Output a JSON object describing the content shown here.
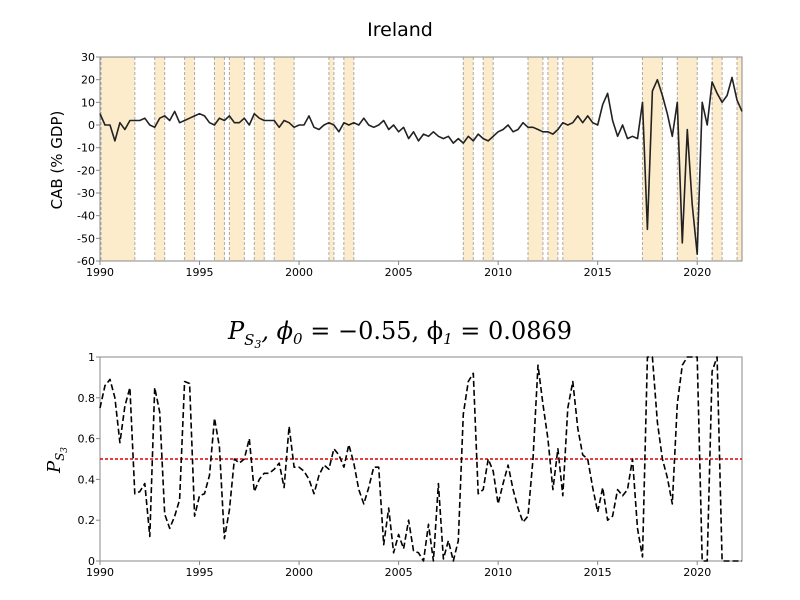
{
  "chart_data": [
    {
      "type": "line",
      "title": "Ireland",
      "ylabel": "CAB (% GDP)",
      "xlabel": "",
      "xlim": [
        1990,
        2022.25
      ],
      "ylim": [
        -60,
        30
      ],
      "x_ticks": [
        "1990",
        "1995",
        "2000",
        "2005",
        "2010",
        "2015",
        "2020"
      ],
      "y_ticks": [
        "30",
        "20",
        "10",
        "0",
        "-10",
        "-20",
        "-30",
        "-40",
        "-50",
        "-60"
      ],
      "shaded_color": "#fdeccc",
      "line_color": "#222222",
      "shaded_regions": [
        [
          1990.05,
          1991.75
        ],
        [
          1992.75,
          1993.25
        ],
        [
          1994.25,
          1994.75
        ],
        [
          1995.75,
          1996.25
        ],
        [
          1996.5,
          1997.25
        ],
        [
          1997.75,
          1998.25
        ],
        [
          1998.75,
          1999.75
        ],
        [
          2001.5,
          2001.75
        ],
        [
          2002.25,
          2002.75
        ],
        [
          2008.25,
          2008.75
        ],
        [
          2009.25,
          2009.75
        ],
        [
          2011.5,
          2012.25
        ],
        [
          2012.5,
          2013.0
        ],
        [
          2013.25,
          2014.75
        ],
        [
          2017.25,
          2018.25
        ],
        [
          2019.0,
          2020.0
        ],
        [
          2020.75,
          2021.25
        ],
        [
          2022.0,
          2022.25
        ]
      ],
      "series": [
        {
          "x": [
            1990.0,
            1990.25,
            1990.5,
            1990.75,
            1991.0,
            1991.25,
            1991.5,
            1991.75,
            1992.0,
            1992.25,
            1992.5,
            1992.75,
            1993.0,
            1993.25,
            1993.5,
            1993.75,
            1994.0,
            1994.25,
            1994.5,
            1994.75,
            1995.0,
            1995.25,
            1995.5,
            1995.75,
            1996.0,
            1996.25,
            1996.5,
            1996.75,
            1997.0,
            1997.25,
            1997.5,
            1997.75,
            1998.0,
            1998.25,
            1998.5,
            1998.75,
            1999.0,
            1999.25,
            1999.5,
            1999.75,
            2000.0,
            2000.25,
            2000.5,
            2000.75,
            2001.0,
            2001.25,
            2001.5,
            2001.75,
            2002.0,
            2002.25,
            2002.5,
            2002.75,
            2003.0,
            2003.25,
            2003.5,
            2003.75,
            2004.0,
            2004.25,
            2004.5,
            2004.75,
            2005.0,
            2005.25,
            2005.5,
            2005.75,
            2006.0,
            2006.25,
            2006.5,
            2006.75,
            2007.0,
            2007.25,
            2007.5,
            2007.75,
            2008.0,
            2008.25,
            2008.5,
            2008.75,
            2009.0,
            2009.25,
            2009.5,
            2009.75,
            2010.0,
            2010.25,
            2010.5,
            2010.75,
            2011.0,
            2011.25,
            2011.5,
            2011.75,
            2012.0,
            2012.25,
            2012.5,
            2012.75,
            2013.0,
            2013.25,
            2013.5,
            2013.75,
            2014.0,
            2014.25,
            2014.5,
            2014.75,
            2015.0,
            2015.25,
            2015.5,
            2015.75,
            2016.0,
            2016.25,
            2016.5,
            2016.75,
            2017.0,
            2017.25,
            2017.5,
            2017.75,
            2018.0,
            2018.25,
            2018.5,
            2018.75,
            2019.0,
            2019.25,
            2019.5,
            2019.75,
            2020.0,
            2020.25,
            2020.5,
            2020.75,
            2021.0,
            2021.25,
            2021.5,
            2021.75,
            2022.0,
            2022.25
          ],
          "y": [
            5,
            0,
            0,
            -7,
            1,
            -2,
            2,
            2,
            2,
            3,
            0,
            -1,
            3,
            4,
            2,
            6,
            1,
            2,
            3,
            4,
            5,
            4,
            1,
            0,
            3,
            2,
            4,
            1,
            1,
            3,
            0,
            5,
            3,
            2,
            2,
            2,
            -1,
            2,
            1,
            -1,
            0,
            0,
            4,
            -1,
            -2,
            0,
            1,
            0,
            -3,
            1,
            0,
            1,
            0,
            3,
            0,
            -1,
            0,
            2,
            -2,
            0,
            -3,
            -1,
            -6,
            -3,
            -7,
            -4,
            -5,
            -3,
            -5,
            -6,
            -5,
            -8,
            -6,
            -8,
            -5,
            -7,
            -4,
            -6,
            -7,
            -5,
            -3,
            -2,
            0,
            -3,
            -2,
            1,
            -1,
            -1,
            -2,
            -3,
            -3,
            -4,
            -2,
            1,
            0,
            1,
            4,
            1,
            4,
            1,
            0,
            9,
            14,
            2,
            -5,
            0,
            -6,
            -5,
            -6,
            10,
            -46,
            15,
            20,
            13,
            5,
            -5,
            10,
            -52,
            -2,
            -35,
            -57,
            10,
            0,
            19,
            14,
            10,
            13,
            21,
            11,
            6
          ]
        }
      ]
    },
    {
      "type": "line",
      "title": "P_{S_3}, ϕ_0 = -0.55, ϕ_1 = 0.0869",
      "title_parts": {
        "p": "P",
        "sub_s": "S",
        "sub_sub": "3",
        "rest": ", ϕ",
        "phi0_sub": "0",
        "phi0_val": " = −0.55, ϕ",
        "phi1_sub": "1",
        "phi1_val": " = 0.0869"
      },
      "ylabel": "P_{S_3}",
      "ylabel_parts": {
        "p": "P",
        "s": "S",
        "n": "3"
      },
      "xlabel": "",
      "xlim": [
        1990,
        2022.25
      ],
      "ylim": [
        0,
        1
      ],
      "x_ticks": [
        "1990",
        "1995",
        "2000",
        "2005",
        "2010",
        "2015",
        "2020"
      ],
      "y_ticks": [
        "1",
        "0.8",
        "0.6",
        "0.4",
        "0.2",
        "0"
      ],
      "threshold": 0.5,
      "threshold_color": "#dd0000",
      "line_color": "#000000",
      "series": [
        {
          "x": [
            1990.0,
            1990.25,
            1990.5,
            1990.75,
            1991.0,
            1991.25,
            1991.5,
            1991.75,
            1992.0,
            1992.25,
            1992.5,
            1992.75,
            1993.0,
            1993.25,
            1993.5,
            1993.75,
            1994.0,
            1994.25,
            1994.5,
            1994.75,
            1995.0,
            1995.25,
            1995.5,
            1995.75,
            1996.0,
            1996.25,
            1996.5,
            1996.75,
            1997.0,
            1997.25,
            1997.5,
            1997.75,
            1998.0,
            1998.25,
            1998.5,
            1998.75,
            1999.0,
            1999.25,
            1999.5,
            1999.75,
            2000.0,
            2000.25,
            2000.5,
            2000.75,
            2001.0,
            2001.25,
            2001.5,
            2001.75,
            2002.0,
            2002.25,
            2002.5,
            2002.75,
            2003.0,
            2003.25,
            2003.5,
            2003.75,
            2004.0,
            2004.25,
            2004.5,
            2004.75,
            2005.0,
            2005.25,
            2005.5,
            2005.75,
            2006.0,
            2006.25,
            2006.5,
            2006.75,
            2007.0,
            2007.25,
            2007.5,
            2007.75,
            2008.0,
            2008.25,
            2008.5,
            2008.75,
            2009.0,
            2009.25,
            2009.5,
            2009.75,
            2010.0,
            2010.25,
            2010.5,
            2010.75,
            2011.0,
            2011.25,
            2011.5,
            2011.75,
            2012.0,
            2012.25,
            2012.5,
            2012.75,
            2013.0,
            2013.25,
            2013.5,
            2013.75,
            2014.0,
            2014.25,
            2014.5,
            2014.75,
            2015.0,
            2015.25,
            2015.5,
            2015.75,
            2016.0,
            2016.25,
            2016.5,
            2016.75,
            2017.0,
            2017.25,
            2017.5,
            2017.75,
            2018.0,
            2018.25,
            2018.5,
            2018.75,
            2019.0,
            2019.25,
            2019.5,
            2019.75,
            2020.0,
            2020.25,
            2020.5,
            2020.75,
            2021.0,
            2021.25,
            2021.5,
            2021.75,
            2022.0,
            2022.25
          ],
          "y": [
            0.75,
            0.86,
            0.89,
            0.8,
            0.58,
            0.76,
            0.85,
            0.33,
            0.34,
            0.38,
            0.12,
            0.85,
            0.73,
            0.23,
            0.16,
            0.22,
            0.3,
            0.88,
            0.87,
            0.22,
            0.32,
            0.33,
            0.42,
            0.7,
            0.56,
            0.11,
            0.25,
            0.5,
            0.48,
            0.5,
            0.6,
            0.34,
            0.4,
            0.43,
            0.43,
            0.45,
            0.48,
            0.36,
            0.66,
            0.46,
            0.46,
            0.44,
            0.4,
            0.33,
            0.42,
            0.47,
            0.45,
            0.55,
            0.52,
            0.46,
            0.57,
            0.48,
            0.35,
            0.28,
            0.36,
            0.46,
            0.46,
            0.08,
            0.26,
            0.04,
            0.13,
            0.06,
            0.2,
            0.05,
            0.04,
            0.0,
            0.18,
            0.0,
            0.38,
            0.01,
            0.1,
            0.0,
            0.1,
            0.72,
            0.88,
            0.92,
            0.33,
            0.35,
            0.5,
            0.44,
            0.28,
            0.38,
            0.47,
            0.35,
            0.26,
            0.19,
            0.22,
            0.5,
            0.96,
            0.77,
            0.6,
            0.35,
            0.55,
            0.32,
            0.75,
            0.88,
            0.65,
            0.52,
            0.5,
            0.36,
            0.24,
            0.36,
            0.2,
            0.22,
            0.35,
            0.32,
            0.35,
            0.5,
            0.16,
            0.02,
            1.0,
            1.0,
            0.68,
            0.5,
            0.41,
            0.28,
            0.77,
            0.96,
            1.0,
            1.0,
            1.0,
            0.0,
            0.0,
            0.93,
            1.0,
            0.0,
            0.0,
            0.0,
            0.0,
            0.0
          ]
        }
      ]
    }
  ]
}
